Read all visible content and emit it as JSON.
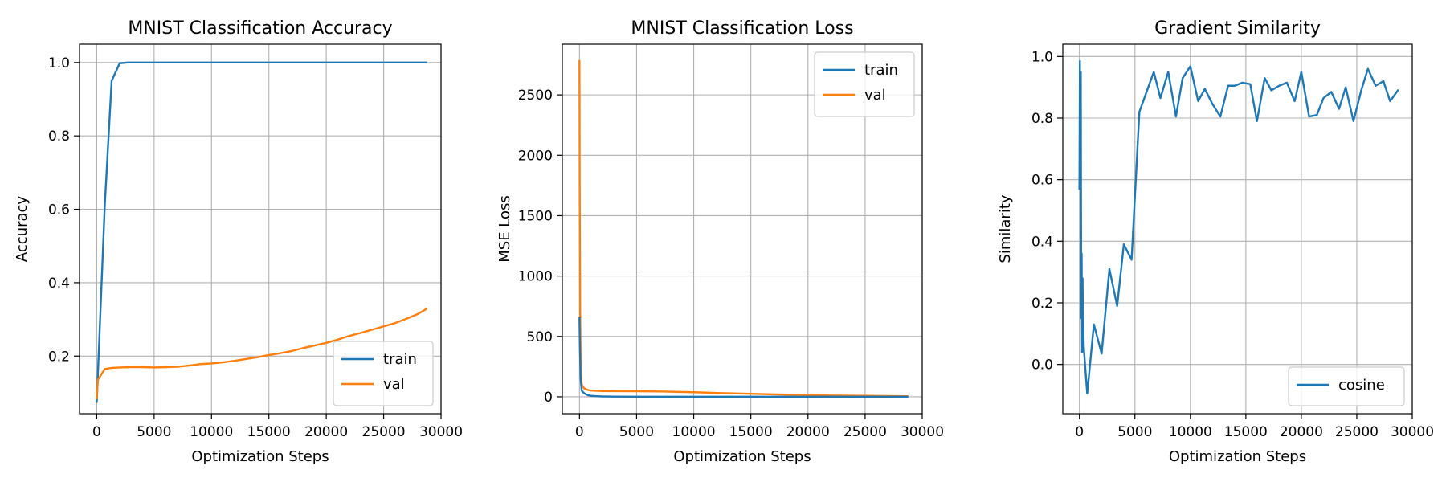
{
  "chart_data": [
    {
      "type": "line",
      "title": "MNIST Classification Accuracy",
      "xlabel": "Optimization Steps",
      "ylabel": "Accuracy",
      "xlim": [
        -1500,
        30000
      ],
      "ylim": [
        0.043,
        1.05
      ],
      "xticks": [
        0,
        5000,
        10000,
        15000,
        20000,
        25000,
        30000
      ],
      "xtick_labels": [
        "0",
        "5000",
        "10000",
        "15000",
        "20000",
        "25000",
        "30000"
      ],
      "yticks": [
        0.2,
        0.4,
        0.6,
        0.8,
        1.0
      ],
      "ytick_labels": [
        "0.2",
        "0.4",
        "0.6",
        "0.8",
        "1.0"
      ],
      "grid": true,
      "legend_position": "lower-right",
      "series": [
        {
          "name": "train",
          "color": "#1f77b4",
          "x": [
            0,
            700,
            1300,
            2000,
            2700,
            3500,
            5000,
            10000,
            15000,
            20000,
            25000,
            28700
          ],
          "y": [
            0.075,
            0.61,
            0.95,
            0.998,
            1.0,
            1.0,
            1.0,
            1.0,
            1.0,
            1.0,
            1.0,
            1.0
          ]
        },
        {
          "name": "val",
          "color": "#ff7f0e",
          "x": [
            0,
            100,
            700,
            1300,
            2000,
            3000,
            4000,
            5000,
            6000,
            7000,
            8000,
            9000,
            10000,
            11000,
            12000,
            13000,
            14000,
            15000,
            16000,
            17000,
            18000,
            19000,
            20000,
            21000,
            22000,
            23000,
            24000,
            25000,
            26000,
            27000,
            28000,
            28700
          ],
          "y": [
            0.085,
            0.135,
            0.165,
            0.168,
            0.169,
            0.17,
            0.17,
            0.169,
            0.17,
            0.171,
            0.174,
            0.178,
            0.18,
            0.183,
            0.187,
            0.192,
            0.197,
            0.203,
            0.208,
            0.214,
            0.222,
            0.229,
            0.236,
            0.245,
            0.255,
            0.263,
            0.272,
            0.281,
            0.29,
            0.302,
            0.315,
            0.328
          ]
        }
      ]
    },
    {
      "type": "line",
      "title": "MNIST Classification Loss",
      "xlabel": "Optimization Steps",
      "ylabel": "MSE Loss",
      "xlim": [
        -1500,
        30000
      ],
      "ylim": [
        -140,
        2920
      ],
      "xticks": [
        0,
        5000,
        10000,
        15000,
        20000,
        25000,
        30000
      ],
      "xtick_labels": [
        "0",
        "5000",
        "10000",
        "15000",
        "20000",
        "25000",
        "30000"
      ],
      "yticks": [
        0,
        500,
        1000,
        1500,
        2000,
        2500
      ],
      "ytick_labels": [
        "0",
        "500",
        "1000",
        "1500",
        "2000",
        "2500"
      ],
      "grid": true,
      "legend_position": "upper-right",
      "series": [
        {
          "name": "train",
          "color": "#1f77b4",
          "x": [
            0,
            40,
            100,
            200,
            400,
            700,
            1000,
            1500,
            2000,
            3000,
            5000,
            10000,
            15000,
            20000,
            25000,
            28700
          ],
          "y": [
            650,
            400,
            150,
            50,
            30,
            15,
            8,
            5,
            3,
            2,
            1,
            1,
            1,
            1,
            1,
            1
          ],
          "draw_index": 1
        },
        {
          "name": "val",
          "color": "#ff7f0e",
          "x": [
            0,
            20,
            60,
            120,
            200,
            400,
            700,
            1000,
            1500,
            2000,
            3000,
            5000,
            7000,
            10000,
            12000,
            15000,
            18000,
            20000,
            22000,
            25000,
            28700
          ],
          "y": [
            2780,
            1800,
            700,
            200,
            100,
            70,
            58,
            52,
            49,
            48,
            47,
            46,
            44,
            38,
            32,
            25,
            18,
            14,
            11,
            8,
            5
          ],
          "draw_index": 0
        }
      ]
    },
    {
      "type": "line",
      "title": "Gradient Similarity",
      "xlabel": "Optimization Steps",
      "ylabel": "Similarity",
      "xlim": [
        -1500,
        30000
      ],
      "ylim": [
        -0.16,
        1.04
      ],
      "xticks": [
        0,
        5000,
        10000,
        15000,
        20000,
        25000,
        30000
      ],
      "xtick_labels": [
        "0",
        "5000",
        "10000",
        "15000",
        "20000",
        "25000",
        "30000"
      ],
      "yticks": [
        0.0,
        0.2,
        0.4,
        0.6,
        0.8,
        1.0
      ],
      "ytick_labels": [
        "0.0",
        "0.2",
        "0.4",
        "0.6",
        "0.8",
        "1.0"
      ],
      "grid": true,
      "legend_position": "lower-right",
      "series": [
        {
          "name": "cosine",
          "color": "#1f77b4",
          "x": [
            0,
            40,
            80,
            120,
            160,
            200,
            240,
            280,
            320,
            400,
            700,
            1300,
            2000,
            2700,
            3400,
            4000,
            4700,
            5400,
            6000,
            6700,
            7300,
            8000,
            8700,
            9300,
            10000,
            10700,
            11300,
            12000,
            12700,
            13400,
            14000,
            14700,
            15400,
            16000,
            16700,
            17300,
            18000,
            18700,
            19400,
            20000,
            20700,
            21400,
            22000,
            22700,
            23400,
            24000,
            24700,
            25400,
            26000,
            26700,
            27400,
            28000,
            28700
          ],
          "y": [
            0.57,
            0.985,
            0.6,
            0.95,
            0.15,
            0.36,
            0.04,
            0.28,
            0.15,
            0.05,
            -0.095,
            0.13,
            0.035,
            0.31,
            0.19,
            0.39,
            0.34,
            0.82,
            0.88,
            0.95,
            0.865,
            0.95,
            0.805,
            0.93,
            0.968,
            0.855,
            0.895,
            0.845,
            0.805,
            0.905,
            0.905,
            0.915,
            0.91,
            0.79,
            0.93,
            0.89,
            0.905,
            0.915,
            0.855,
            0.95,
            0.805,
            0.81,
            0.865,
            0.885,
            0.83,
            0.9,
            0.79,
            0.89,
            0.96,
            0.905,
            0.92,
            0.855,
            0.89
          ]
        }
      ]
    }
  ]
}
